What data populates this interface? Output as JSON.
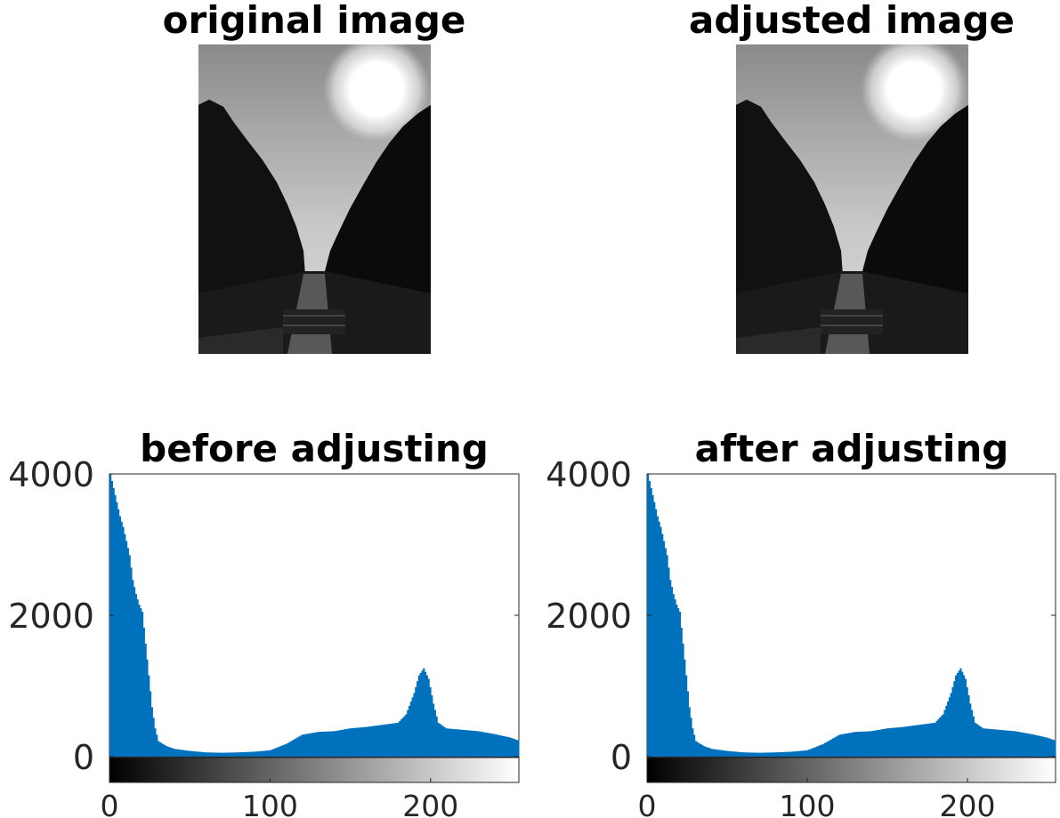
{
  "panels": {
    "original_title": "original image",
    "adjusted_title": "adjusted image"
  },
  "chart_data": [
    {
      "type": "bar",
      "title": "before adjusting",
      "xlabel": "",
      "ylabel": "",
      "xlim": [
        0,
        255
      ],
      "ylim": [
        0,
        4000
      ],
      "xticks": [
        "0",
        "100",
        "200"
      ],
      "yticks": [
        "0",
        "2000",
        "4000"
      ],
      "colorbar": "grayscale 0-255",
      "series": [
        {
          "color": "#0072BD",
          "x": [
            0,
            2,
            4,
            6,
            8,
            10,
            12,
            14,
            16,
            18,
            20,
            22,
            24,
            26,
            28,
            30,
            35,
            40,
            50,
            60,
            70,
            80,
            90,
            100,
            110,
            120,
            130,
            140,
            150,
            160,
            170,
            180,
            185,
            190,
            193,
            196,
            199,
            202,
            205,
            210,
            220,
            230,
            240,
            250,
            255
          ],
          "values": [
            4000,
            3800,
            3600,
            3400,
            3250,
            3050,
            2850,
            2500,
            2300,
            2150,
            2050,
            1600,
            1150,
            700,
            400,
            220,
            150,
            110,
            80,
            60,
            55,
            60,
            70,
            90,
            180,
            310,
            350,
            360,
            400,
            420,
            450,
            480,
            600,
            900,
            1150,
            1250,
            1100,
            750,
            480,
            400,
            380,
            360,
            320,
            270,
            230
          ]
        }
      ]
    },
    {
      "type": "bar",
      "title": "after adjusting",
      "xlabel": "",
      "ylabel": "",
      "xlim": [
        0,
        255
      ],
      "ylim": [
        0,
        4000
      ],
      "xticks": [
        "0",
        "100",
        "200"
      ],
      "yticks": [
        "0",
        "2000",
        "4000"
      ],
      "colorbar": "grayscale 0-255",
      "series": [
        {
          "color": "#0072BD",
          "x": [
            0,
            2,
            4,
            6,
            8,
            10,
            12,
            14,
            16,
            18,
            20,
            22,
            24,
            26,
            28,
            30,
            35,
            40,
            50,
            60,
            70,
            80,
            90,
            100,
            110,
            120,
            130,
            140,
            150,
            160,
            170,
            180,
            185,
            190,
            193,
            196,
            199,
            202,
            205,
            210,
            220,
            230,
            240,
            250,
            255
          ],
          "values": [
            4000,
            3800,
            3600,
            3400,
            3250,
            3050,
            2850,
            2500,
            2300,
            2150,
            2050,
            1600,
            1150,
            700,
            400,
            220,
            150,
            110,
            80,
            60,
            55,
            60,
            70,
            90,
            180,
            310,
            350,
            360,
            400,
            420,
            450,
            480,
            600,
            900,
            1150,
            1250,
            1100,
            750,
            480,
            400,
            380,
            360,
            320,
            270,
            230
          ]
        }
      ]
    }
  ]
}
